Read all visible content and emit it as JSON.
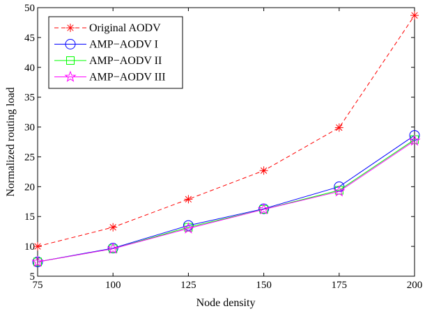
{
  "chart_data": {
    "type": "line",
    "xlabel": "Node density",
    "ylabel": "Normalized routing load",
    "xlim": [
      75,
      200
    ],
    "ylim": [
      5,
      50
    ],
    "x_ticks": [
      75,
      100,
      125,
      150,
      175,
      200
    ],
    "y_ticks": [
      5,
      10,
      15,
      20,
      25,
      30,
      35,
      40,
      45,
      50
    ],
    "grid": false,
    "legend_position": "top-left",
    "x": [
      75,
      100,
      125,
      150,
      175,
      200
    ],
    "series": [
      {
        "name": "Original AODV",
        "values": [
          10.0,
          13.2,
          17.9,
          22.7,
          29.9,
          48.7
        ],
        "color": "#ff0000",
        "line": "dashed",
        "marker": "asterisk"
      },
      {
        "name": "AMP−AODV I",
        "values": [
          7.4,
          9.7,
          13.5,
          16.3,
          20.0,
          28.6
        ],
        "color": "#0000ff",
        "line": "solid",
        "marker": "circle"
      },
      {
        "name": "AMP−AODV II",
        "values": [
          7.4,
          9.6,
          13.2,
          16.2,
          19.4,
          27.9
        ],
        "color": "#00ff00",
        "line": "solid",
        "marker": "square"
      },
      {
        "name": "AMP−AODV III",
        "values": [
          7.4,
          9.6,
          13.0,
          16.2,
          19.2,
          27.7
        ],
        "color": "#ff00ff",
        "line": "solid",
        "marker": "pentagram"
      }
    ]
  }
}
